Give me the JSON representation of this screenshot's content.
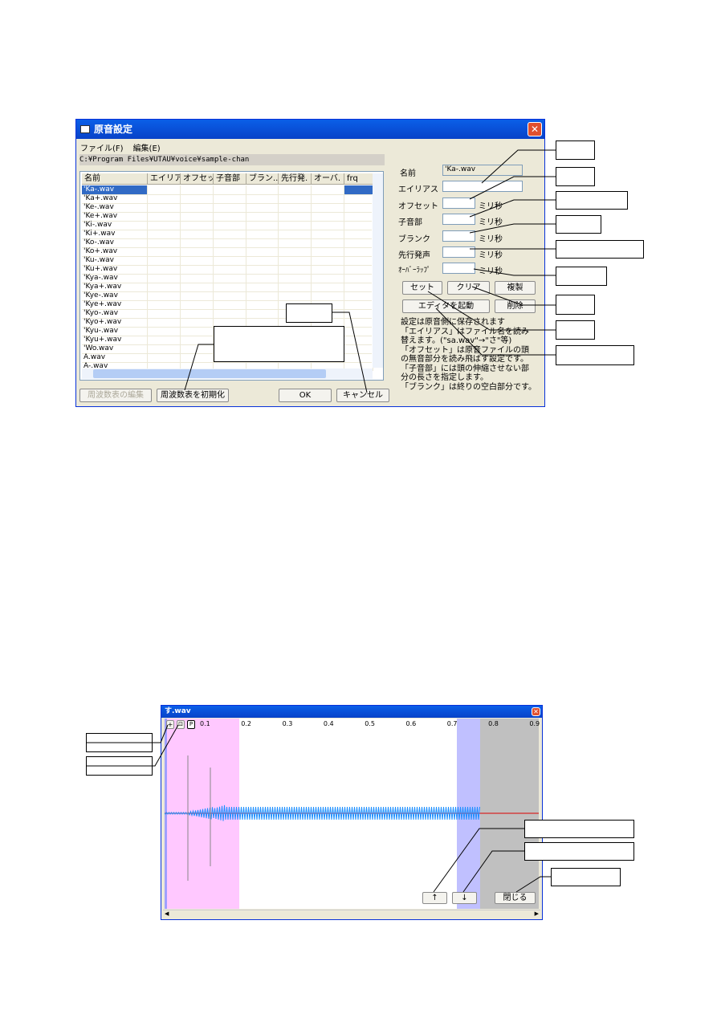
{
  "dialog": {
    "title": "原音設定",
    "menu": [
      "ファイル(F)",
      "編集(E)"
    ],
    "path": "C:¥Program Files¥UTAU¥voice¥sample-chan",
    "columns": [
      "名前",
      "エイリア",
      "オフセッ",
      "子音部",
      "ブラン..",
      "先行発.",
      "オーバ.",
      "frq"
    ],
    "rows": [
      "'Ka-.wav",
      "'Ka+.wav",
      "'Ke-.wav",
      "'Ke+.wav",
      "'Ki-.wav",
      "'Ki+.wav",
      "'Ko-.wav",
      "'Ko+.wav",
      "'Ku-.wav",
      "'Ku+.wav",
      "'Kya-.wav",
      "'Kya+.wav",
      "'Kye-.wav",
      "'Kye+.wav",
      "'Kyo-.wav",
      "'Kyo+.wav",
      "'Kyu-.wav",
      "'Kyu+.wav",
      "'Wo.wav",
      "A.wav",
      "A-.wav"
    ],
    "buttons": {
      "edit_freq": "周波数表の編集",
      "init_freq": "周波数表を初期化",
      "ok": "OK",
      "cancel": "キャンセル"
    },
    "form": {
      "name_label": "名前",
      "name_value": "'Ka-.wav",
      "alias_label": "エイリアス",
      "offset_label": "オフセット",
      "consonant_label": "子音部",
      "blank_label": "ブランク",
      "preutterance_label": "先行発声",
      "overlap_label": "ｵｰﾊﾞｰﾗｯﾌﾟ",
      "unit": "ミリ秒"
    },
    "actions": {
      "set": "セット",
      "clear": "クリア",
      "copy": "複製",
      "editor": "エディタを起動",
      "delete": "削除"
    },
    "help": [
      "設定は原音側に保存されます",
      "「エイリアス」はファイル名を読み",
      "替えます。(\"sa.wav\"→\"さ\"等)",
      "「オフセット」は原音ファイルの頭",
      "の無音部分を読み飛ばす設定です。",
      "「子音部」には頭の伸縮させない部",
      "分の長さを指定します。",
      "「ブランク」は終りの空白部分です。"
    ]
  },
  "wave_window": {
    "title": "す.wav",
    "tool_buttons": [
      "+",
      "⊡",
      "P"
    ],
    "ticks": [
      "0.1",
      "0.2",
      "0.3",
      "0.4",
      "0.5",
      "0.6",
      "0.7",
      "0.8",
      "0.9"
    ],
    "buttons": {
      "up": "↑",
      "down": "↓",
      "close": "閉じる"
    },
    "colors": {
      "consonant": "#ffc8ff",
      "blank": "#c0c0c0",
      "overlap": "#c0c0ff",
      "wave": "#1e90ff"
    }
  }
}
